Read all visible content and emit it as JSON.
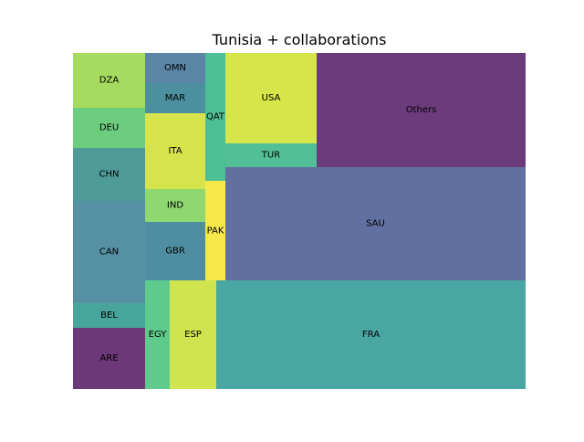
{
  "chart_data": {
    "type": "treemap",
    "title": "Tunisia + collaborations",
    "tiles": [
      {
        "label": "DZA",
        "value": 60,
        "color": "#a5db5f"
      },
      {
        "label": "DEU",
        "value": 44,
        "color": "#6dcd7e"
      },
      {
        "label": "CHN",
        "value": 58,
        "color": "#4e9b9a"
      },
      {
        "label": "CAN",
        "value": 112,
        "color": "#5590a3"
      },
      {
        "label": "BEL",
        "value": 27,
        "color": "#48a59b"
      },
      {
        "label": "ARE",
        "value": 67,
        "color": "#6c3878"
      },
      {
        "label": "OMN",
        "value": 23,
        "color": "#5b85a4"
      },
      {
        "label": "MAR",
        "value": 21,
        "color": "#4c90a0"
      },
      {
        "label": "ITA",
        "value": 55,
        "color": "#d6e34a"
      },
      {
        "label": "IND",
        "value": 24,
        "color": "#8fd76f"
      },
      {
        "label": "GBR",
        "value": 43,
        "color": "#4e8ea0"
      },
      {
        "label": "QAT",
        "value": 31,
        "color": "#4dbf95"
      },
      {
        "label": "PAK",
        "value": 24,
        "color": "#f7e84a"
      },
      {
        "label": "EGY",
        "value": 23,
        "color": "#5ecb8c"
      },
      {
        "label": "ESP",
        "value": 52,
        "color": "#cfe44e"
      },
      {
        "label": "USA",
        "value": 86,
        "color": "#d6e54a"
      },
      {
        "label": "TUR",
        "value": 22,
        "color": "#52bf96"
      },
      {
        "label": "SAU",
        "value": 284,
        "color": "#616fa1"
      },
      {
        "label": "FRA",
        "value": 342,
        "color": "#4aa6a3"
      },
      {
        "label": "Others",
        "value": 242,
        "color": "#6c3b7c"
      }
    ]
  }
}
